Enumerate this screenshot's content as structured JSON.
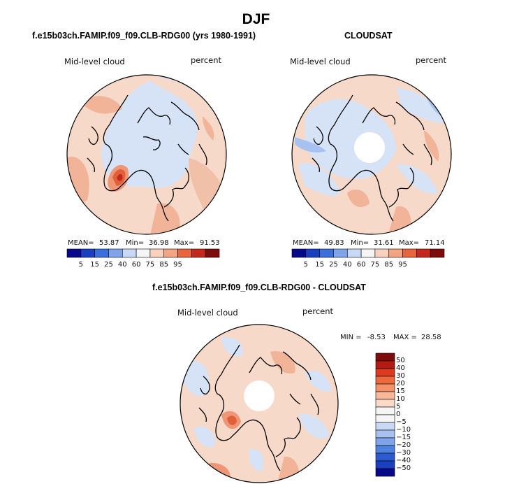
{
  "figure": {
    "season": "DJF",
    "colors": {
      "outline": "#000000",
      "ocean_background": "#f6d9c9"
    }
  },
  "panels": [
    {
      "title": "f.e15b03ch.FAMIP.f09_f09.CLB-RDG00 (yrs 1980-1991)",
      "variable": "Mid-level cloud",
      "units": "percent",
      "stats": {
        "mean_label": "MEAN=",
        "mean": "53.87",
        "min_label": "Min=",
        "min": "36.98",
        "max_label": "Max=",
        "max": "91.53"
      },
      "has_pole_hole": false
    },
    {
      "title": "CLOUDSAT",
      "variable": "Mid-level cloud",
      "units": "percent",
      "stats": {
        "mean_label": "MEAN=",
        "mean": "49.83",
        "min_label": "Min=",
        "min": "31.61",
        "max_label": "Max=",
        "max": "71.14"
      },
      "has_pole_hole": true
    },
    {
      "title": "f.e15b03ch.FAMIP.f09_f09.CLB-RDG00 - CLOUDSAT",
      "variable": "Mid-level cloud",
      "units": "percent",
      "stats": {
        "min_label": "MIN =",
        "min": "-8.53",
        "max_label": "MAX =",
        "max": "28.58"
      },
      "has_pole_hole": true
    }
  ],
  "horizontal_colorbar": {
    "colors": [
      "#08088a",
      "#1a3fbf",
      "#3a6fdc",
      "#7fa4ea",
      "#c9d9f5",
      "#f5f5f5",
      "#f8d2bf",
      "#f3a483",
      "#e8643c",
      "#c4281c",
      "#7d0b0b"
    ],
    "tick_labels": [
      "5",
      "15",
      "25",
      "40",
      "60",
      "75",
      "85",
      "95"
    ]
  },
  "vertical_colorbar": {
    "colors": [
      "#7d0b0b",
      "#b31a12",
      "#dd3a1f",
      "#ee6a3c",
      "#f59168",
      "#f8b89c",
      "#fad9c9",
      "#f5f5f5",
      "#f5f5f5",
      "#c9d9f5",
      "#a8c2ef",
      "#7fa4ea",
      "#4e82e0",
      "#2b5bcf",
      "#1a3fbf",
      "#08088a"
    ],
    "tick_labels": [
      "50",
      "40",
      "30",
      "20",
      "15",
      "10",
      "5",
      "0",
      "−5",
      "−10",
      "−15",
      "−20",
      "−30",
      "−40",
      "−50"
    ]
  }
}
